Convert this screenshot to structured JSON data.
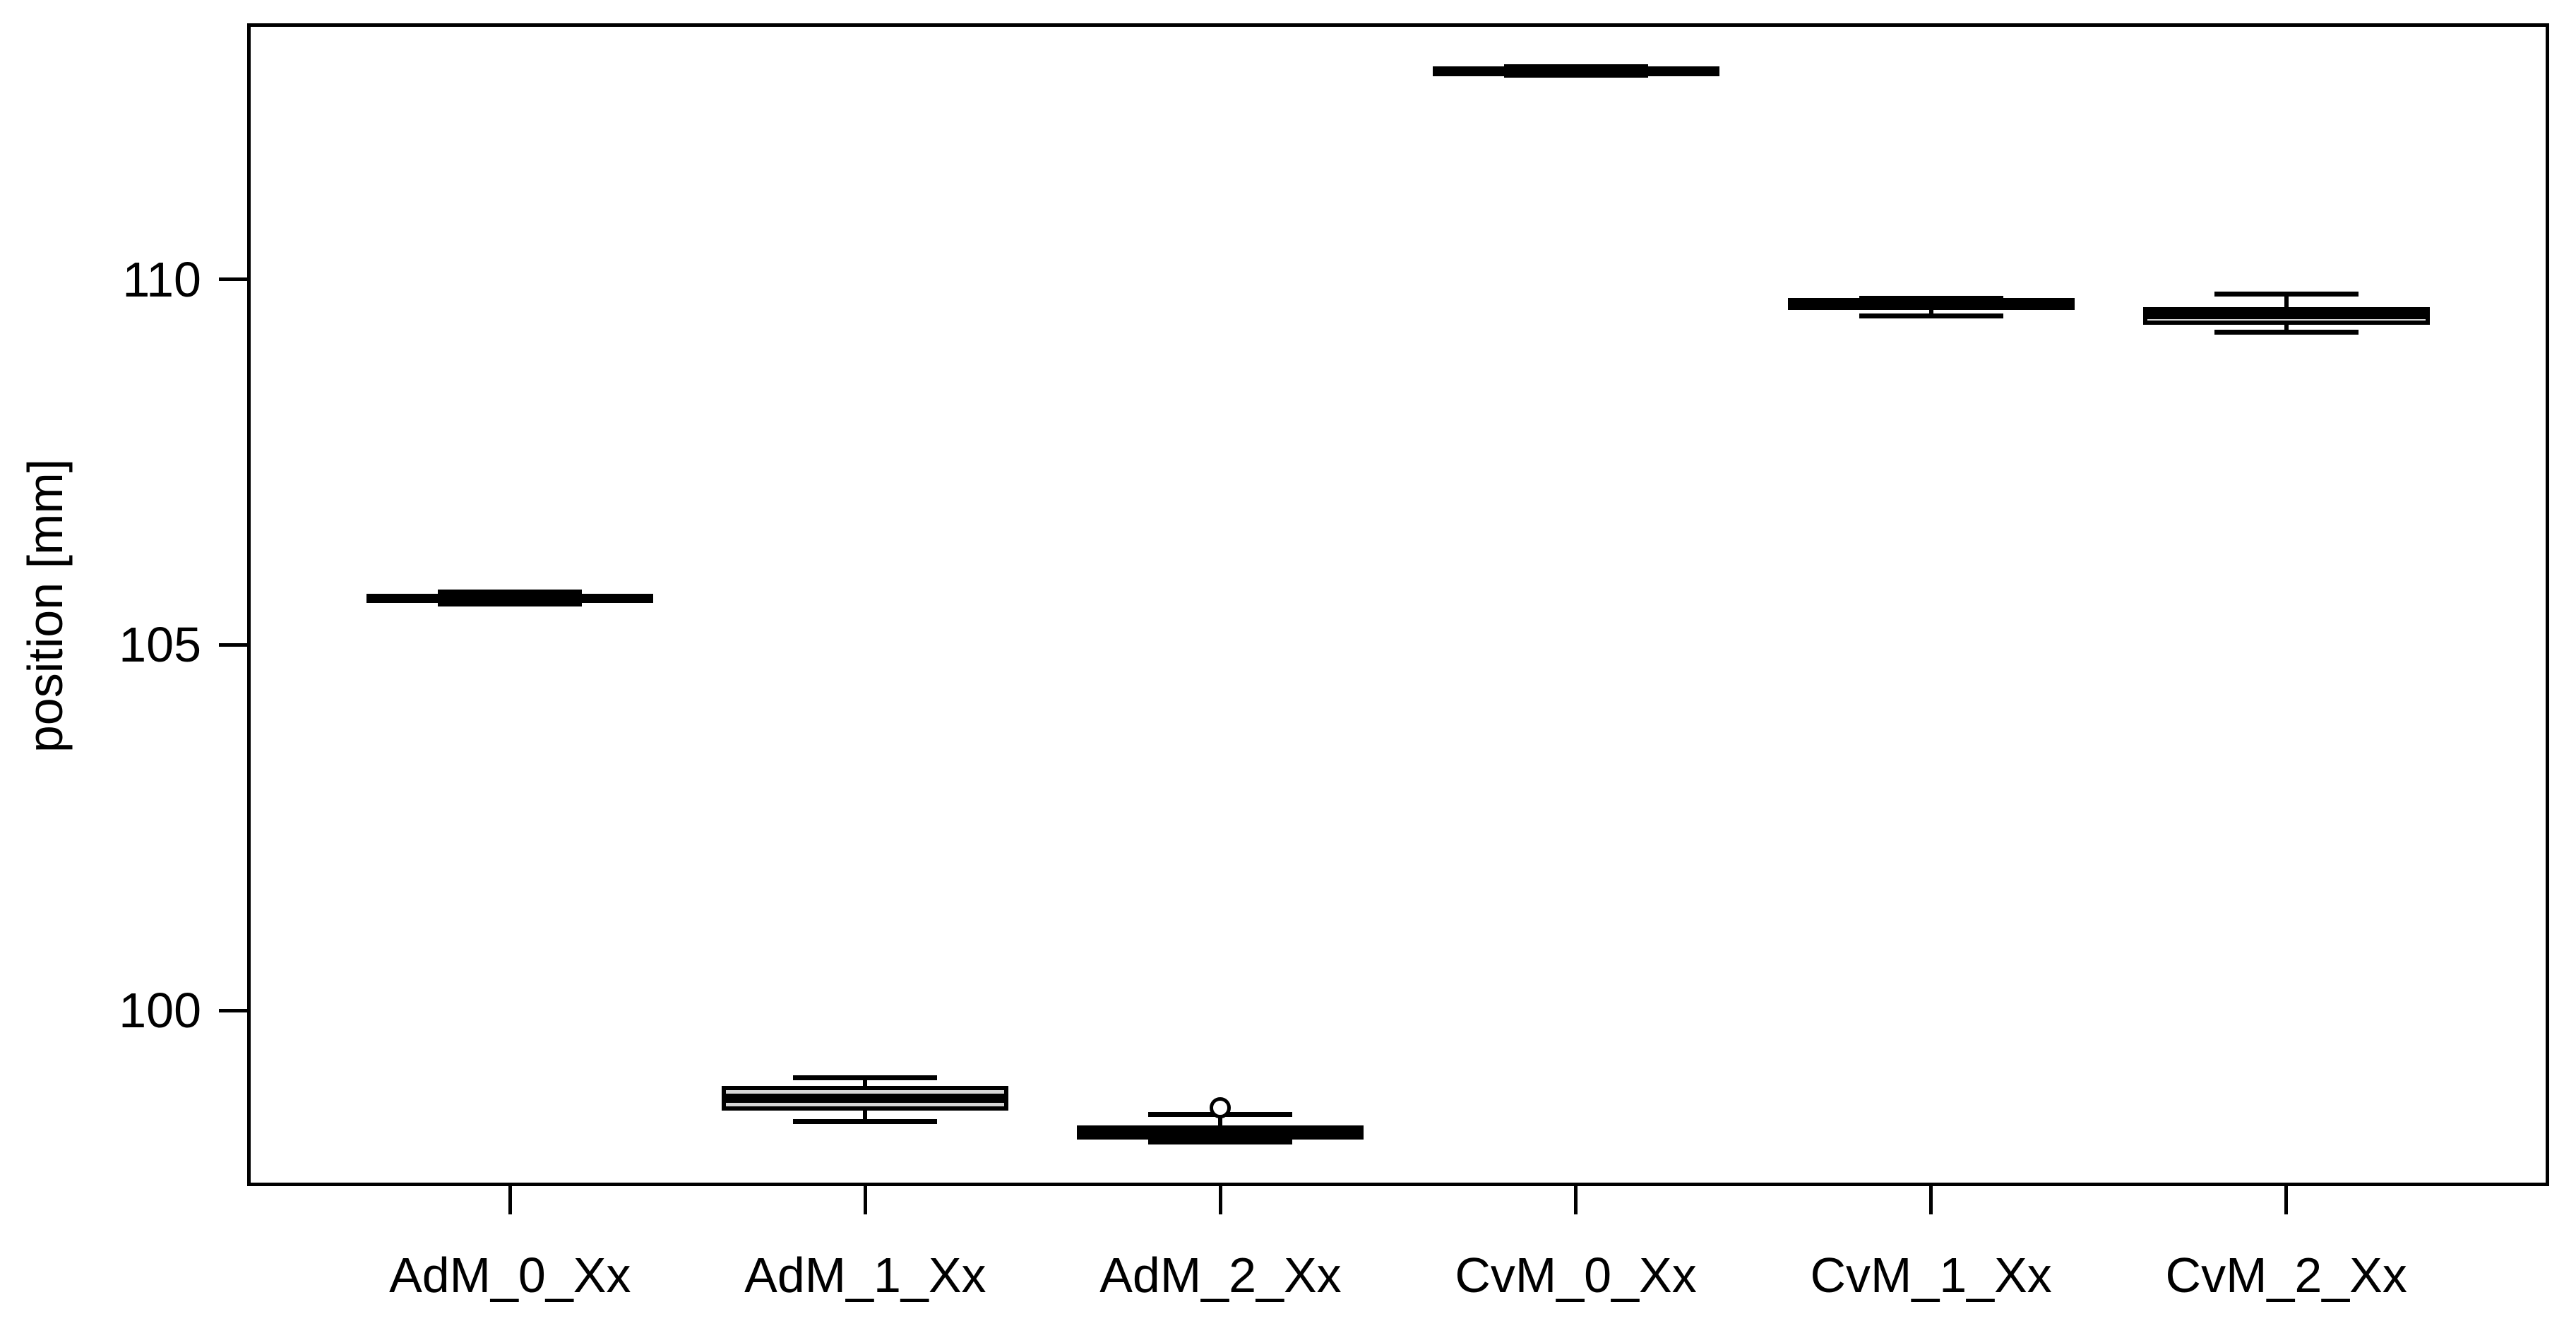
{
  "chart_data": {
    "type": "boxplot",
    "title": "",
    "xlabel": "",
    "ylabel": "position [mm]",
    "ylim": [
      97.6,
      113.5
    ],
    "yticks": [
      100,
      105,
      110
    ],
    "grid": false,
    "legend": "none",
    "categories": [
      "AdM_0_Xx",
      "AdM_1_Xx",
      "AdM_2_Xx",
      "CvM_0_Xx",
      "CvM_1_Xx",
      "CvM_2_Xx"
    ],
    "boxes": [
      {
        "category": "AdM_0_Xx",
        "whisker_low": 105.56,
        "q1": 105.58,
        "median": 105.64,
        "q3": 105.7,
        "whisker_high": 105.72,
        "outliers": []
      },
      {
        "category": "AdM_1_Xx",
        "whisker_low": 98.48,
        "q1": 98.63,
        "median": 98.8,
        "q3": 98.97,
        "whisker_high": 99.08,
        "outliers": []
      },
      {
        "category": "AdM_2_Xx",
        "whisker_low": 98.2,
        "q1": 98.24,
        "median": 98.35,
        "q3": 98.43,
        "whisker_high": 98.58,
        "outliers": [
          98.67
        ]
      },
      {
        "category": "CvM_0_Xx",
        "whisker_low": 112.79,
        "q1": 112.81,
        "median": 112.85,
        "q3": 112.89,
        "whisker_high": 112.91,
        "outliers": []
      },
      {
        "category": "CvM_1_Xx",
        "whisker_low": 109.5,
        "q1": 109.58,
        "median": 109.68,
        "q3": 109.73,
        "whisker_high": 109.74,
        "outliers": []
      },
      {
        "category": "CvM_2_Xx",
        "whisker_low": 109.28,
        "q1": 109.38,
        "median": 109.52,
        "q3": 109.62,
        "whisker_high": 109.8,
        "outliers": []
      }
    ],
    "colors": {
      "line": "#000000",
      "box_fill": "#d6d6d6",
      "background": "#ffffff"
    }
  }
}
